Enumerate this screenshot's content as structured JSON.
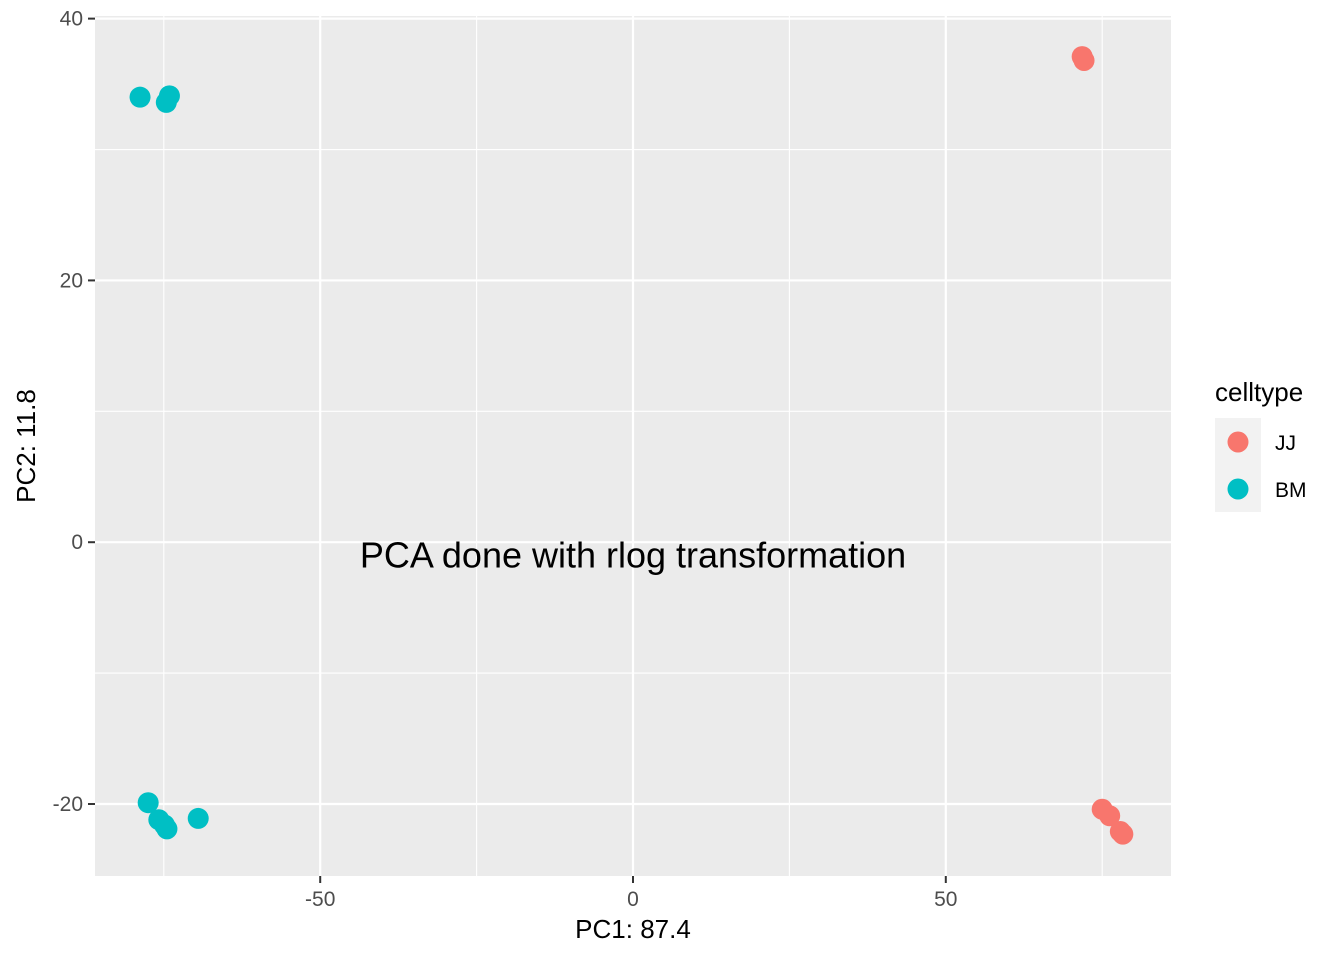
{
  "chart_data": {
    "type": "scatter",
    "xlabel": "PC1: 87.4",
    "ylabel": "PC2: 11.8",
    "xlim": [
      -86,
      86
    ],
    "ylim": [
      -25.5,
      40.2
    ],
    "x_ticks": [
      -50,
      0,
      50
    ],
    "x_tick_labels": [
      "-50",
      "0",
      "50"
    ],
    "x_minor_ticks": [
      -75,
      -25,
      25,
      75
    ],
    "y_ticks": [
      -20,
      0,
      20,
      40
    ],
    "y_tick_labels": [
      "-20",
      "0",
      "20",
      "40"
    ],
    "y_minor_ticks": [
      -10,
      10,
      30
    ],
    "grid": true,
    "panel_background": "#ebebeb",
    "grid_color": "#ffffff",
    "annotation": {
      "text": "PCA done with rlog transformation",
      "x": 0,
      "y": -1
    },
    "legend": {
      "title": "celltype",
      "placement": "right"
    },
    "series": [
      {
        "name": "JJ",
        "color": "#f8766d",
        "points": [
          {
            "x": 71.8,
            "y": 37.1
          },
          {
            "x": 72.1,
            "y": 36.8
          },
          {
            "x": 75.0,
            "y": -20.4
          },
          {
            "x": 76.2,
            "y": -20.9
          },
          {
            "x": 77.9,
            "y": -22.1
          },
          {
            "x": 78.3,
            "y": -22.3
          }
        ]
      },
      {
        "name": "BM",
        "color": "#00bfc4",
        "points": [
          {
            "x": -78.8,
            "y": 34.0
          },
          {
            "x": -74.1,
            "y": 34.1
          },
          {
            "x": -74.6,
            "y": 33.6
          },
          {
            "x": -77.5,
            "y": -19.9
          },
          {
            "x": -75.8,
            "y": -21.2
          },
          {
            "x": -74.9,
            "y": -21.6
          },
          {
            "x": -74.5,
            "y": -21.9
          },
          {
            "x": -69.5,
            "y": -21.1
          }
        ]
      }
    ]
  }
}
